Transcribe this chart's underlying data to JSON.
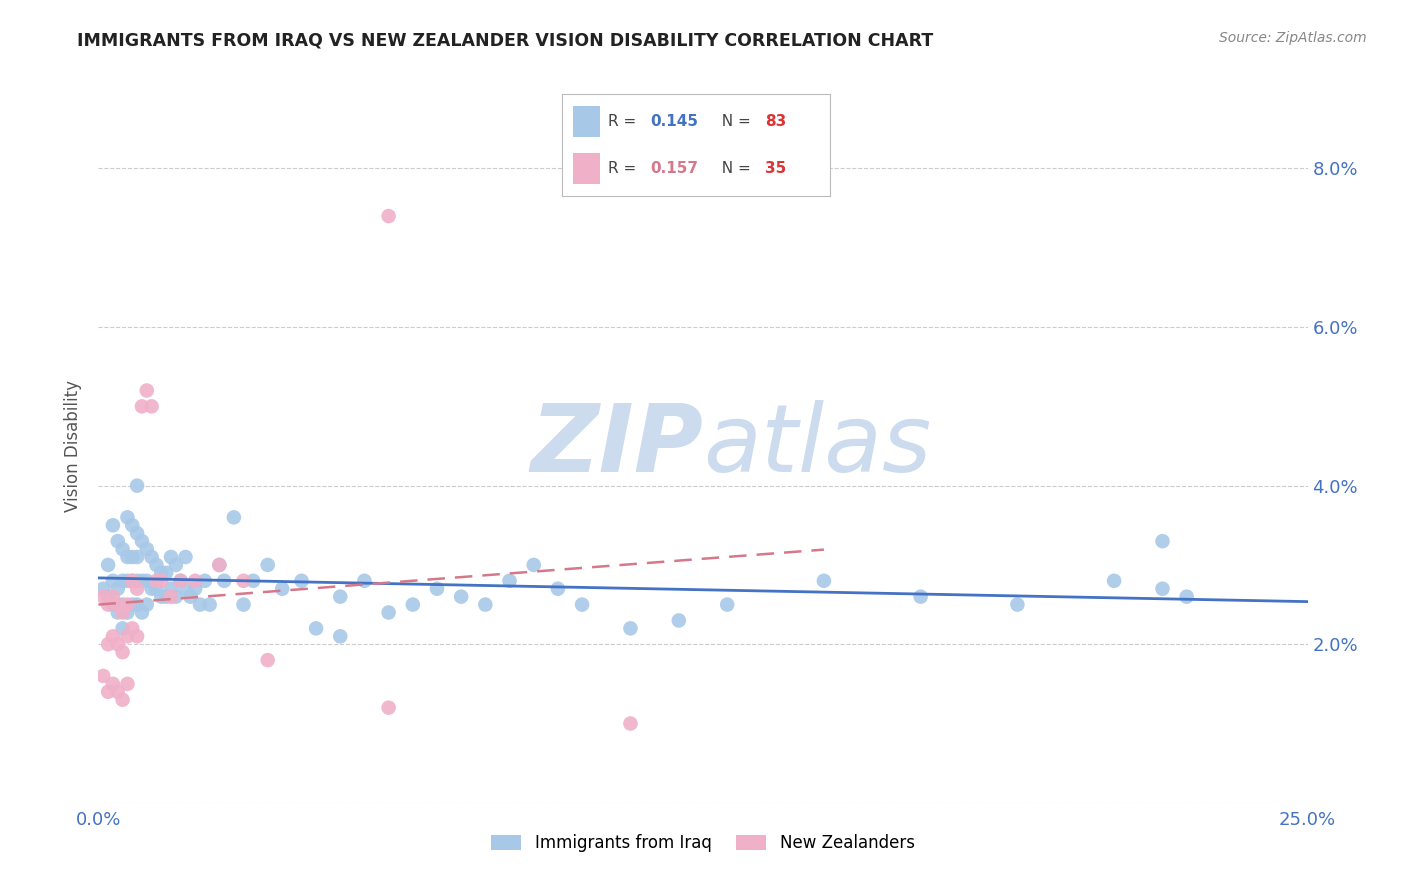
{
  "title": "IMMIGRANTS FROM IRAQ VS NEW ZEALANDER VISION DISABILITY CORRELATION CHART",
  "source": "Source: ZipAtlas.com",
  "ylabel": "Vision Disability",
  "xlim": [
    0.0,
    0.25
  ],
  "ylim": [
    0.0,
    0.09
  ],
  "xtick_positions": [
    0.0,
    0.05,
    0.1,
    0.15,
    0.2,
    0.25
  ],
  "xticklabels": [
    "0.0%",
    "",
    "",
    "",
    "",
    "25.0%"
  ],
  "ytick_positions": [
    0.0,
    0.02,
    0.04,
    0.06,
    0.08
  ],
  "yticklabels": [
    "",
    "2.0%",
    "4.0%",
    "6.0%",
    "8.0%"
  ],
  "blue_R": 0.145,
  "blue_N": 83,
  "pink_R": 0.157,
  "pink_N": 35,
  "blue_color": "#a8c8e8",
  "pink_color": "#f0b0c8",
  "blue_line_color": "#4472c4",
  "pink_line_color": "#d4788a",
  "watermark_color": "#ccdcee",
  "blue_scatter_x": [
    0.001,
    0.002,
    0.002,
    0.003,
    0.003,
    0.003,
    0.004,
    0.004,
    0.004,
    0.005,
    0.005,
    0.005,
    0.005,
    0.006,
    0.006,
    0.006,
    0.006,
    0.007,
    0.007,
    0.007,
    0.007,
    0.008,
    0.008,
    0.008,
    0.008,
    0.009,
    0.009,
    0.009,
    0.01,
    0.01,
    0.01,
    0.011,
    0.011,
    0.012,
    0.012,
    0.013,
    0.013,
    0.014,
    0.014,
    0.015,
    0.015,
    0.016,
    0.016,
    0.017,
    0.018,
    0.018,
    0.019,
    0.02,
    0.021,
    0.022,
    0.023,
    0.025,
    0.026,
    0.028,
    0.03,
    0.032,
    0.035,
    0.038,
    0.042,
    0.045,
    0.05,
    0.05,
    0.055,
    0.06,
    0.065,
    0.07,
    0.075,
    0.08,
    0.085,
    0.09,
    0.095,
    0.1,
    0.11,
    0.12,
    0.13,
    0.15,
    0.17,
    0.19,
    0.21,
    0.22,
    0.22,
    0.225,
    0.008
  ],
  "blue_scatter_y": [
    0.027,
    0.03,
    0.026,
    0.035,
    0.028,
    0.025,
    0.033,
    0.027,
    0.024,
    0.032,
    0.028,
    0.025,
    0.022,
    0.036,
    0.031,
    0.028,
    0.024,
    0.035,
    0.031,
    0.028,
    0.025,
    0.034,
    0.031,
    0.028,
    0.025,
    0.033,
    0.028,
    0.024,
    0.032,
    0.028,
    0.025,
    0.031,
    0.027,
    0.03,
    0.027,
    0.029,
    0.026,
    0.029,
    0.026,
    0.031,
    0.027,
    0.03,
    0.026,
    0.028,
    0.031,
    0.027,
    0.026,
    0.027,
    0.025,
    0.028,
    0.025,
    0.03,
    0.028,
    0.036,
    0.025,
    0.028,
    0.03,
    0.027,
    0.028,
    0.022,
    0.026,
    0.021,
    0.028,
    0.024,
    0.025,
    0.027,
    0.026,
    0.025,
    0.028,
    0.03,
    0.027,
    0.025,
    0.022,
    0.023,
    0.025,
    0.028,
    0.026,
    0.025,
    0.028,
    0.027,
    0.033,
    0.026,
    0.04
  ],
  "pink_scatter_x": [
    0.001,
    0.001,
    0.002,
    0.002,
    0.002,
    0.003,
    0.003,
    0.003,
    0.004,
    0.004,
    0.004,
    0.005,
    0.005,
    0.005,
    0.006,
    0.006,
    0.006,
    0.007,
    0.007,
    0.008,
    0.008,
    0.009,
    0.01,
    0.011,
    0.012,
    0.013,
    0.015,
    0.017,
    0.02,
    0.025,
    0.03,
    0.035,
    0.11,
    0.06,
    0.06
  ],
  "pink_scatter_y": [
    0.026,
    0.016,
    0.025,
    0.02,
    0.014,
    0.026,
    0.021,
    0.015,
    0.025,
    0.02,
    0.014,
    0.024,
    0.019,
    0.013,
    0.025,
    0.021,
    0.015,
    0.028,
    0.022,
    0.027,
    0.021,
    0.05,
    0.052,
    0.05,
    0.028,
    0.028,
    0.026,
    0.028,
    0.028,
    0.03,
    0.028,
    0.018,
    0.01,
    0.074,
    0.012
  ]
}
